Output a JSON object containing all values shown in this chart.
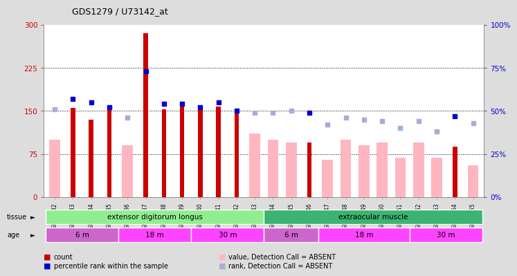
{
  "title": "GDS1279 / U73142_at",
  "samples": [
    "GSM74432",
    "GSM74433",
    "GSM74434",
    "GSM74435",
    "GSM74436",
    "GSM74437",
    "GSM74438",
    "GSM74439",
    "GSM74440",
    "GSM74441",
    "GSM74442",
    "GSM74443",
    "GSM74444",
    "GSM74445",
    "GSM74446",
    "GSM74447",
    "GSM74448",
    "GSM74449",
    "GSM74450",
    "GSM74451",
    "GSM74452",
    "GSM74453",
    "GSM74454",
    "GSM74455"
  ],
  "count_values": [
    null,
    155,
    135,
    152,
    null,
    285,
    153,
    163,
    155,
    157,
    148,
    null,
    null,
    null,
    95,
    null,
    null,
    null,
    null,
    null,
    null,
    null,
    88,
    null
  ],
  "absent_values": [
    100,
    null,
    null,
    null,
    90,
    null,
    null,
    null,
    null,
    null,
    null,
    110,
    100,
    95,
    null,
    65,
    100,
    90,
    95,
    68,
    95,
    68,
    null,
    55
  ],
  "rank_present_pct": [
    null,
    57,
    55,
    52,
    null,
    73,
    54,
    54,
    52,
    55,
    50,
    null,
    null,
    null,
    49,
    null,
    null,
    null,
    null,
    null,
    null,
    null,
    47,
    null
  ],
  "rank_absent_pct": [
    51,
    null,
    null,
    null,
    46,
    null,
    null,
    null,
    null,
    null,
    null,
    49,
    49,
    50,
    null,
    42,
    46,
    45,
    44,
    40,
    44,
    38,
    null,
    43
  ],
  "tissue_groups": [
    {
      "label": "extensor digitorum longus",
      "start": 0,
      "end": 12,
      "color": "#90EE90"
    },
    {
      "label": "extraocular muscle",
      "start": 12,
      "end": 24,
      "color": "#3CB371"
    }
  ],
  "age_groups": [
    {
      "label": "6 m",
      "start": 0,
      "end": 4,
      "color": "#CC66CC"
    },
    {
      "label": "18 m",
      "start": 4,
      "end": 8,
      "color": "#FF44FF"
    },
    {
      "label": "30 m",
      "start": 8,
      "end": 12,
      "color": "#FF44FF"
    },
    {
      "label": "6 m",
      "start": 12,
      "end": 15,
      "color": "#CC66CC"
    },
    {
      "label": "18 m",
      "start": 15,
      "end": 20,
      "color": "#FF44FF"
    },
    {
      "label": "30 m",
      "start": 20,
      "end": 24,
      "color": "#FF44FF"
    }
  ],
  "ylim_left": [
    0,
    300
  ],
  "ylim_right": [
    0,
    100
  ],
  "yticks_left": [
    0,
    75,
    150,
    225,
    300
  ],
  "yticks_right": [
    0,
    25,
    50,
    75,
    100
  ],
  "color_count": "#CC0000",
  "color_rank_present": "#0000CC",
  "color_absent_bar": "#FFB6C1",
  "color_rank_absent": "#AAAADD",
  "bg_color": "#DDDDDD",
  "plot_bg": "#FFFFFF",
  "legend_items": [
    {
      "color": "#CC0000",
      "label": "count"
    },
    {
      "color": "#0000CC",
      "label": "percentile rank within the sample"
    },
    {
      "color": "#FFB6C1",
      "label": "value, Detection Call = ABSENT"
    },
    {
      "color": "#AAAADD",
      "label": "rank, Detection Call = ABSENT"
    }
  ]
}
